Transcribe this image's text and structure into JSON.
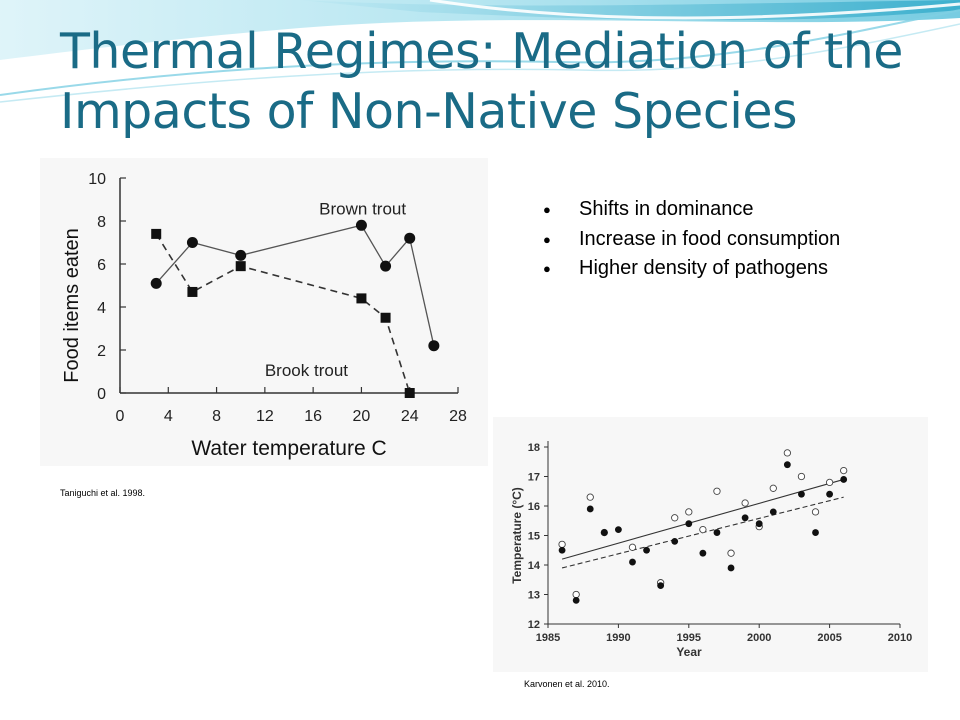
{
  "slide": {
    "title_line1": "Thermal Regimes: Mediation of the",
    "title_line2": "Impacts of Non-Native Species",
    "bullets": [
      "Shifts in dominance",
      "Increase in food consumption",
      "Higher density of pathogens"
    ],
    "citation_left": "Taniguchi et al. 1998.",
    "citation_right": "Karvonen et al. 2010.",
    "theme_colors": {
      "title": "#1a6b86",
      "wave_light": "#9fdbea",
      "wave_deep": "#2fa9c9"
    }
  },
  "chart_data": [
    {
      "type": "line",
      "title": "",
      "xlabel": "Water temperature  C",
      "ylabel": "Food items eaten",
      "xlim": [
        0,
        28
      ],
      "ylim": [
        0,
        10
      ],
      "xticks": [
        0,
        4,
        8,
        12,
        16,
        20,
        24,
        28
      ],
      "yticks": [
        0,
        2,
        4,
        6,
        8,
        10
      ],
      "grid": false,
      "series": [
        {
          "name": "Brown trout",
          "marker": "circle",
          "line": "solid",
          "x": [
            3,
            6,
            10,
            20,
            22,
            24,
            26
          ],
          "y": [
            5.1,
            7.0,
            6.4,
            7.8,
            5.9,
            7.2,
            2.2
          ]
        },
        {
          "name": "Brook trout",
          "marker": "square",
          "line": "dashed",
          "x": [
            3,
            6,
            10,
            20,
            22,
            24
          ],
          "y": [
            7.4,
            4.7,
            5.9,
            4.4,
            3.5,
            0.0
          ]
        }
      ]
    },
    {
      "type": "scatter",
      "title": "",
      "xlabel": "Year",
      "ylabel": "Temperature (°C)",
      "xlim": [
        1985,
        2010
      ],
      "ylim": [
        12,
        18
      ],
      "xticks": [
        1985,
        1990,
        1995,
        2000,
        2005,
        2010
      ],
      "yticks": [
        12,
        13,
        14,
        15,
        16,
        17,
        18
      ],
      "grid": false,
      "series": [
        {
          "marker": "open-circle",
          "x": [
            1986,
            1987,
            1988,
            1989,
            1991,
            1993,
            1994,
            1995,
            1996,
            1997,
            1998,
            1999,
            2000,
            2001,
            2002,
            2003,
            2004,
            2005,
            2006
          ],
          "y": [
            14.7,
            13.0,
            16.3,
            15.1,
            14.6,
            13.4,
            15.6,
            15.8,
            15.2,
            16.5,
            14.4,
            16.1,
            15.3,
            16.6,
            17.8,
            17.0,
            15.8,
            16.8,
            17.2
          ],
          "trend": {
            "x": [
              1986,
              2006
            ],
            "y": [
              14.2,
              16.9
            ],
            "line": "solid"
          }
        },
        {
          "marker": "filled-circle",
          "x": [
            1986,
            1987,
            1988,
            1989,
            1990,
            1991,
            1992,
            1993,
            1994,
            1995,
            1996,
            1997,
            1998,
            1999,
            2000,
            2001,
            2002,
            2003,
            2004,
            2005,
            2006
          ],
          "y": [
            14.5,
            12.8,
            15.9,
            15.1,
            15.2,
            14.1,
            14.5,
            13.3,
            14.8,
            15.4,
            14.4,
            15.1,
            13.9,
            15.6,
            15.4,
            15.8,
            17.4,
            16.4,
            15.1,
            16.4,
            16.9
          ],
          "trend": {
            "x": [
              1986,
              2006
            ],
            "y": [
              13.9,
              16.3
            ],
            "line": "dashed"
          }
        }
      ]
    }
  ]
}
